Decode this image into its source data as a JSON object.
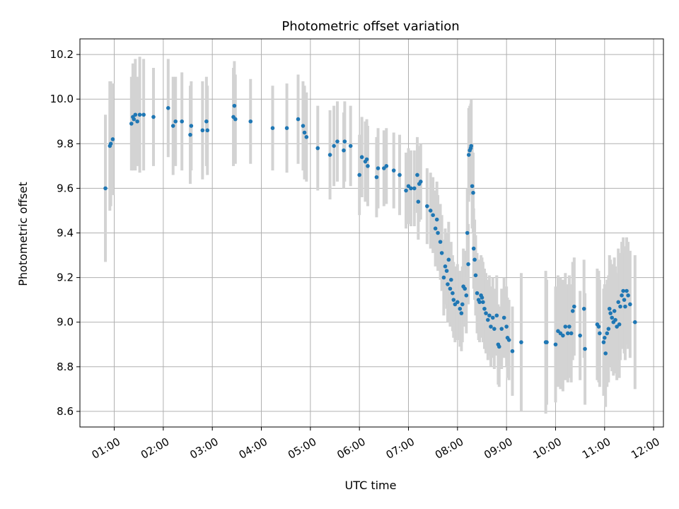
{
  "chart_data": {
    "type": "scatter",
    "title": "Photometric offset variation",
    "xlabel": "UTC time",
    "ylabel": "Photometric offset",
    "x_unit": "hours UTC",
    "xlim": [
      0.3,
      12.2
    ],
    "ylim": [
      8.53,
      10.27
    ],
    "x_ticks": [
      1,
      2,
      3,
      4,
      5,
      6,
      7,
      8,
      9,
      10,
      11,
      12
    ],
    "x_tick_labels": [
      "01:00",
      "02:00",
      "03:00",
      "04:00",
      "05:00",
      "06:00",
      "07:00",
      "08:00",
      "09:00",
      "10:00",
      "11:00",
      "12:00"
    ],
    "y_ticks": [
      8.6,
      8.8,
      9.0,
      9.2,
      9.4,
      9.6,
      9.8,
      10.0,
      10.2
    ],
    "y_tick_labels": [
      "8.6",
      "8.8",
      "9.0",
      "9.2",
      "9.4",
      "9.6",
      "9.8",
      "10.0",
      "10.2"
    ],
    "grid": true,
    "point_color": "#1f77b4",
    "errorbar_color": "#d3d3d3",
    "points": [
      [
        0.82,
        9.6,
        0.33
      ],
      [
        0.91,
        9.79,
        0.29
      ],
      [
        0.93,
        9.8,
        0.28
      ],
      [
        0.97,
        9.82,
        0.25
      ],
      [
        1.35,
        9.89,
        0.21
      ],
      [
        1.38,
        9.92,
        0.24
      ],
      [
        1.4,
        9.91,
        0.22
      ],
      [
        1.43,
        9.93,
        0.25
      ],
      [
        1.47,
        9.9,
        0.2
      ],
      [
        1.52,
        9.93,
        0.26
      ],
      [
        1.6,
        9.93,
        0.25
      ],
      [
        1.8,
        9.92,
        0.22
      ],
      [
        2.1,
        9.96,
        0.22
      ],
      [
        2.2,
        9.88,
        0.22
      ],
      [
        2.25,
        9.9,
        0.2
      ],
      [
        2.38,
        9.9,
        0.22
      ],
      [
        2.55,
        9.84,
        0.22
      ],
      [
        2.57,
        9.88,
        0.2
      ],
      [
        2.8,
        9.86,
        0.22
      ],
      [
        2.88,
        9.9,
        0.2
      ],
      [
        2.9,
        9.86,
        0.2
      ],
      [
        3.43,
        9.92,
        0.22
      ],
      [
        3.45,
        9.97,
        0.2
      ],
      [
        3.47,
        9.91,
        0.2
      ],
      [
        3.78,
        9.9,
        0.19
      ],
      [
        4.23,
        9.87,
        0.19
      ],
      [
        4.52,
        9.87,
        0.2
      ],
      [
        4.75,
        9.91,
        0.2
      ],
      [
        4.85,
        9.88,
        0.2
      ],
      [
        4.88,
        9.85,
        0.21
      ],
      [
        4.92,
        9.83,
        0.2
      ],
      [
        5.15,
        9.78,
        0.19
      ],
      [
        5.4,
        9.75,
        0.2
      ],
      [
        5.48,
        9.79,
        0.18
      ],
      [
        5.55,
        9.81,
        0.18
      ],
      [
        5.68,
        9.77,
        0.17
      ],
      [
        5.7,
        9.81,
        0.18
      ],
      [
        5.82,
        9.79,
        0.18
      ],
      [
        6.0,
        9.66,
        0.18
      ],
      [
        6.05,
        9.74,
        0.18
      ],
      [
        6.12,
        9.72,
        0.18
      ],
      [
        6.15,
        9.73,
        0.18
      ],
      [
        6.17,
        9.7,
        0.18
      ],
      [
        6.35,
        9.65,
        0.18
      ],
      [
        6.38,
        9.69,
        0.18
      ],
      [
        6.5,
        9.69,
        0.17
      ],
      [
        6.55,
        9.7,
        0.17
      ],
      [
        6.7,
        9.68,
        0.17
      ],
      [
        6.82,
        9.66,
        0.18
      ],
      [
        6.95,
        9.59,
        0.17
      ],
      [
        7.0,
        9.61,
        0.17
      ],
      [
        7.05,
        9.6,
        0.17
      ],
      [
        7.12,
        9.6,
        0.17
      ],
      [
        7.18,
        9.66,
        0.17
      ],
      [
        7.2,
        9.54,
        0.17
      ],
      [
        7.22,
        9.62,
        0.17
      ],
      [
        7.25,
        9.63,
        0.17
      ],
      [
        7.38,
        9.52,
        0.17
      ],
      [
        7.45,
        9.5,
        0.17
      ],
      [
        7.5,
        9.48,
        0.17
      ],
      [
        7.55,
        9.42,
        0.17
      ],
      [
        7.58,
        9.46,
        0.17
      ],
      [
        7.6,
        9.4,
        0.17
      ],
      [
        7.65,
        9.36,
        0.17
      ],
      [
        7.68,
        9.31,
        0.17
      ],
      [
        7.72,
        9.2,
        0.17
      ],
      [
        7.75,
        9.25,
        0.17
      ],
      [
        7.78,
        9.23,
        0.17
      ],
      [
        7.8,
        9.17,
        0.17
      ],
      [
        7.82,
        9.28,
        0.17
      ],
      [
        7.85,
        9.15,
        0.17
      ],
      [
        7.87,
        9.19,
        0.17
      ],
      [
        7.9,
        9.13,
        0.17
      ],
      [
        7.92,
        9.1,
        0.17
      ],
      [
        7.95,
        9.08,
        0.17
      ],
      [
        8.0,
        9.09,
        0.17
      ],
      [
        8.05,
        9.06,
        0.17
      ],
      [
        8.08,
        9.04,
        0.17
      ],
      [
        8.1,
        9.08,
        0.17
      ],
      [
        8.12,
        9.16,
        0.17
      ],
      [
        8.15,
        9.15,
        0.17
      ],
      [
        8.18,
        9.12,
        0.17
      ],
      [
        8.2,
        9.4,
        0.2
      ],
      [
        8.22,
        9.26,
        0.18
      ],
      [
        8.23,
        9.75,
        0.21
      ],
      [
        8.25,
        9.77,
        0.2
      ],
      [
        8.27,
        9.78,
        0.2
      ],
      [
        8.28,
        9.79,
        0.21
      ],
      [
        8.3,
        9.61,
        0.19
      ],
      [
        8.32,
        9.58,
        0.18
      ],
      [
        8.33,
        9.33,
        0.18
      ],
      [
        8.35,
        9.28,
        0.18
      ],
      [
        8.37,
        9.21,
        0.18
      ],
      [
        8.4,
        9.13,
        0.18
      ],
      [
        8.43,
        9.1,
        0.18
      ],
      [
        8.45,
        9.09,
        0.18
      ],
      [
        8.48,
        9.12,
        0.18
      ],
      [
        8.5,
        9.11,
        0.18
      ],
      [
        8.52,
        9.09,
        0.18
      ],
      [
        8.55,
        9.06,
        0.18
      ],
      [
        8.58,
        9.04,
        0.18
      ],
      [
        8.62,
        9.01,
        0.18
      ],
      [
        8.65,
        9.03,
        0.18
      ],
      [
        8.68,
        8.98,
        0.18
      ],
      [
        8.72,
        9.02,
        0.18
      ],
      [
        8.75,
        8.97,
        0.18
      ],
      [
        8.8,
        9.03,
        0.18
      ],
      [
        8.83,
        8.9,
        0.18
      ],
      [
        8.85,
        8.89,
        0.18
      ],
      [
        8.9,
        8.97,
        0.18
      ],
      [
        8.95,
        9.02,
        0.18
      ],
      [
        9.0,
        8.98,
        0.18
      ],
      [
        9.02,
        8.93,
        0.18
      ],
      [
        9.05,
        8.92,
        0.18
      ],
      [
        9.12,
        8.87,
        0.2
      ],
      [
        9.3,
        8.91,
        0.31
      ],
      [
        9.8,
        8.91,
        0.32
      ],
      [
        9.82,
        8.91,
        0.28
      ],
      [
        10.0,
        8.9,
        0.26
      ],
      [
        10.05,
        8.96,
        0.25
      ],
      [
        10.1,
        8.95,
        0.25
      ],
      [
        10.15,
        8.94,
        0.25
      ],
      [
        10.2,
        8.98,
        0.24
      ],
      [
        10.25,
        8.95,
        0.22
      ],
      [
        10.28,
        8.98,
        0.23
      ],
      [
        10.32,
        8.95,
        0.22
      ],
      [
        10.35,
        9.05,
        0.22
      ],
      [
        10.38,
        9.07,
        0.22
      ],
      [
        10.5,
        8.94,
        0.2
      ],
      [
        10.58,
        9.06,
        0.22
      ],
      [
        10.6,
        8.88,
        0.25
      ],
      [
        10.85,
        8.99,
        0.25
      ],
      [
        10.88,
        8.98,
        0.25
      ],
      [
        10.9,
        8.95,
        0.24
      ],
      [
        10.98,
        8.91,
        0.24
      ],
      [
        11.0,
        8.93,
        0.24
      ],
      [
        11.02,
        8.86,
        0.24
      ],
      [
        11.05,
        8.95,
        0.24
      ],
      [
        11.08,
        8.97,
        0.24
      ],
      [
        11.1,
        9.06,
        0.24
      ],
      [
        11.12,
        9.04,
        0.24
      ],
      [
        11.15,
        9.02,
        0.24
      ],
      [
        11.18,
        9.0,
        0.24
      ],
      [
        11.2,
        9.05,
        0.24
      ],
      [
        11.22,
        9.01,
        0.24
      ],
      [
        11.25,
        8.98,
        0.24
      ],
      [
        11.28,
        9.09,
        0.24
      ],
      [
        11.3,
        8.99,
        0.24
      ],
      [
        11.32,
        9.07,
        0.24
      ],
      [
        11.35,
        9.12,
        0.24
      ],
      [
        11.38,
        9.14,
        0.24
      ],
      [
        11.4,
        9.1,
        0.24
      ],
      [
        11.42,
        9.07,
        0.24
      ],
      [
        11.45,
        9.14,
        0.24
      ],
      [
        11.48,
        9.12,
        0.24
      ],
      [
        11.52,
        9.08,
        0.24
      ],
      [
        11.62,
        9.0,
        0.3
      ]
    ]
  }
}
